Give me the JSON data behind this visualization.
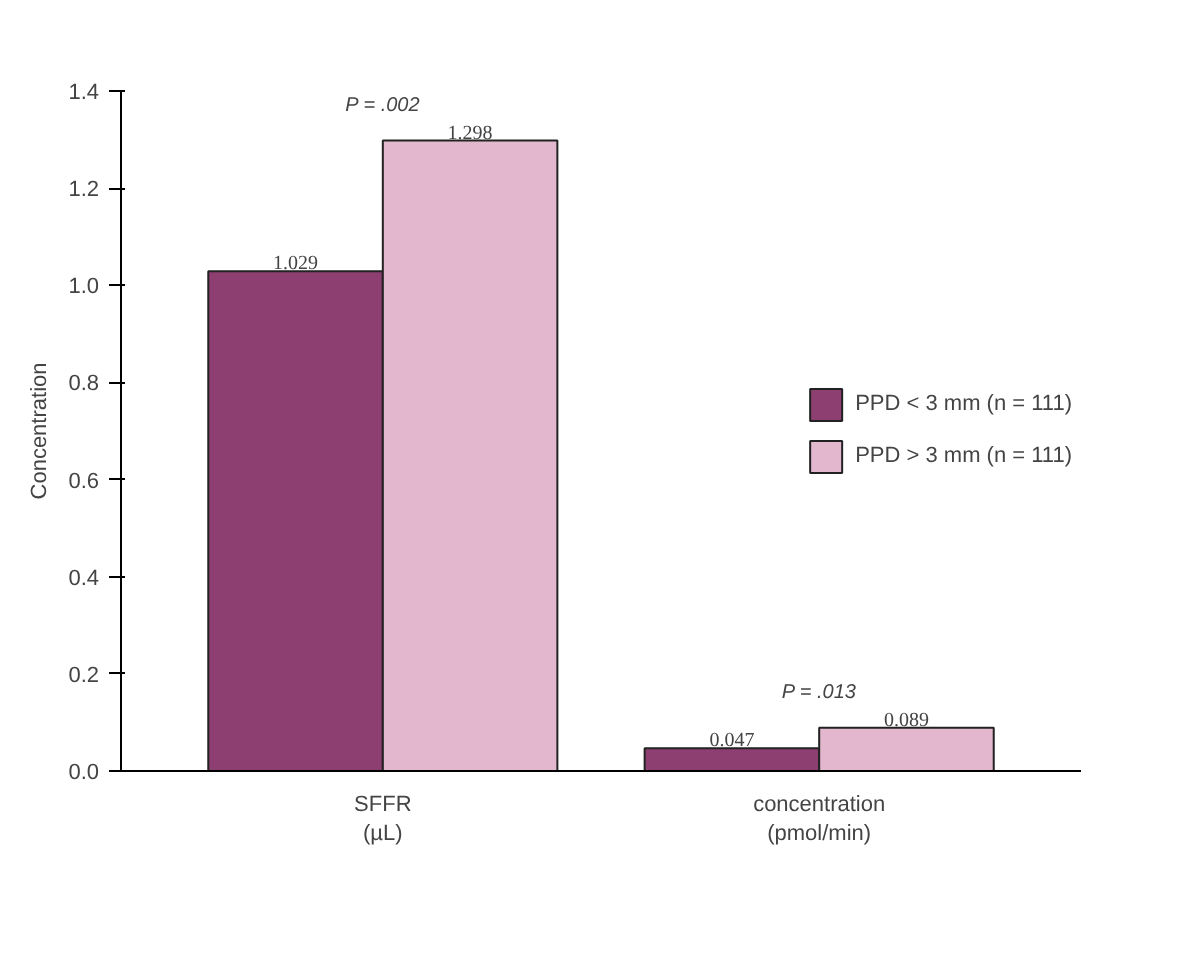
{
  "chart_data": {
    "type": "bar",
    "ylabel": "Concentration",
    "categories": [
      "SFFR\n(µL)",
      "concentration\n(pmol/min)"
    ],
    "series": [
      {
        "name": "PPD < 3 mm (n = 111)",
        "color": "#8e3f72",
        "values": [
          1.029,
          0.047
        ]
      },
      {
        "name": "PPD > 3 mm (n = 111)",
        "color": "#e3b8cf",
        "values": [
          1.298,
          0.089
        ]
      }
    ],
    "ylim": [
      0,
      1.4
    ],
    "yticks": [
      "0.0",
      0.2,
      0.4,
      0.6,
      0.8,
      "1.0",
      1.2,
      1.4
    ],
    "data_labels": true,
    "legend": "right",
    "grid": false,
    "annotations": [
      {
        "text": "P = .002",
        "x": "SFFR\n(µL)",
        "y": 1.298
      },
      {
        "text": "P = .013",
        "x": "concentration\n(pmol/min)",
        "y": 0.089
      }
    ]
  }
}
